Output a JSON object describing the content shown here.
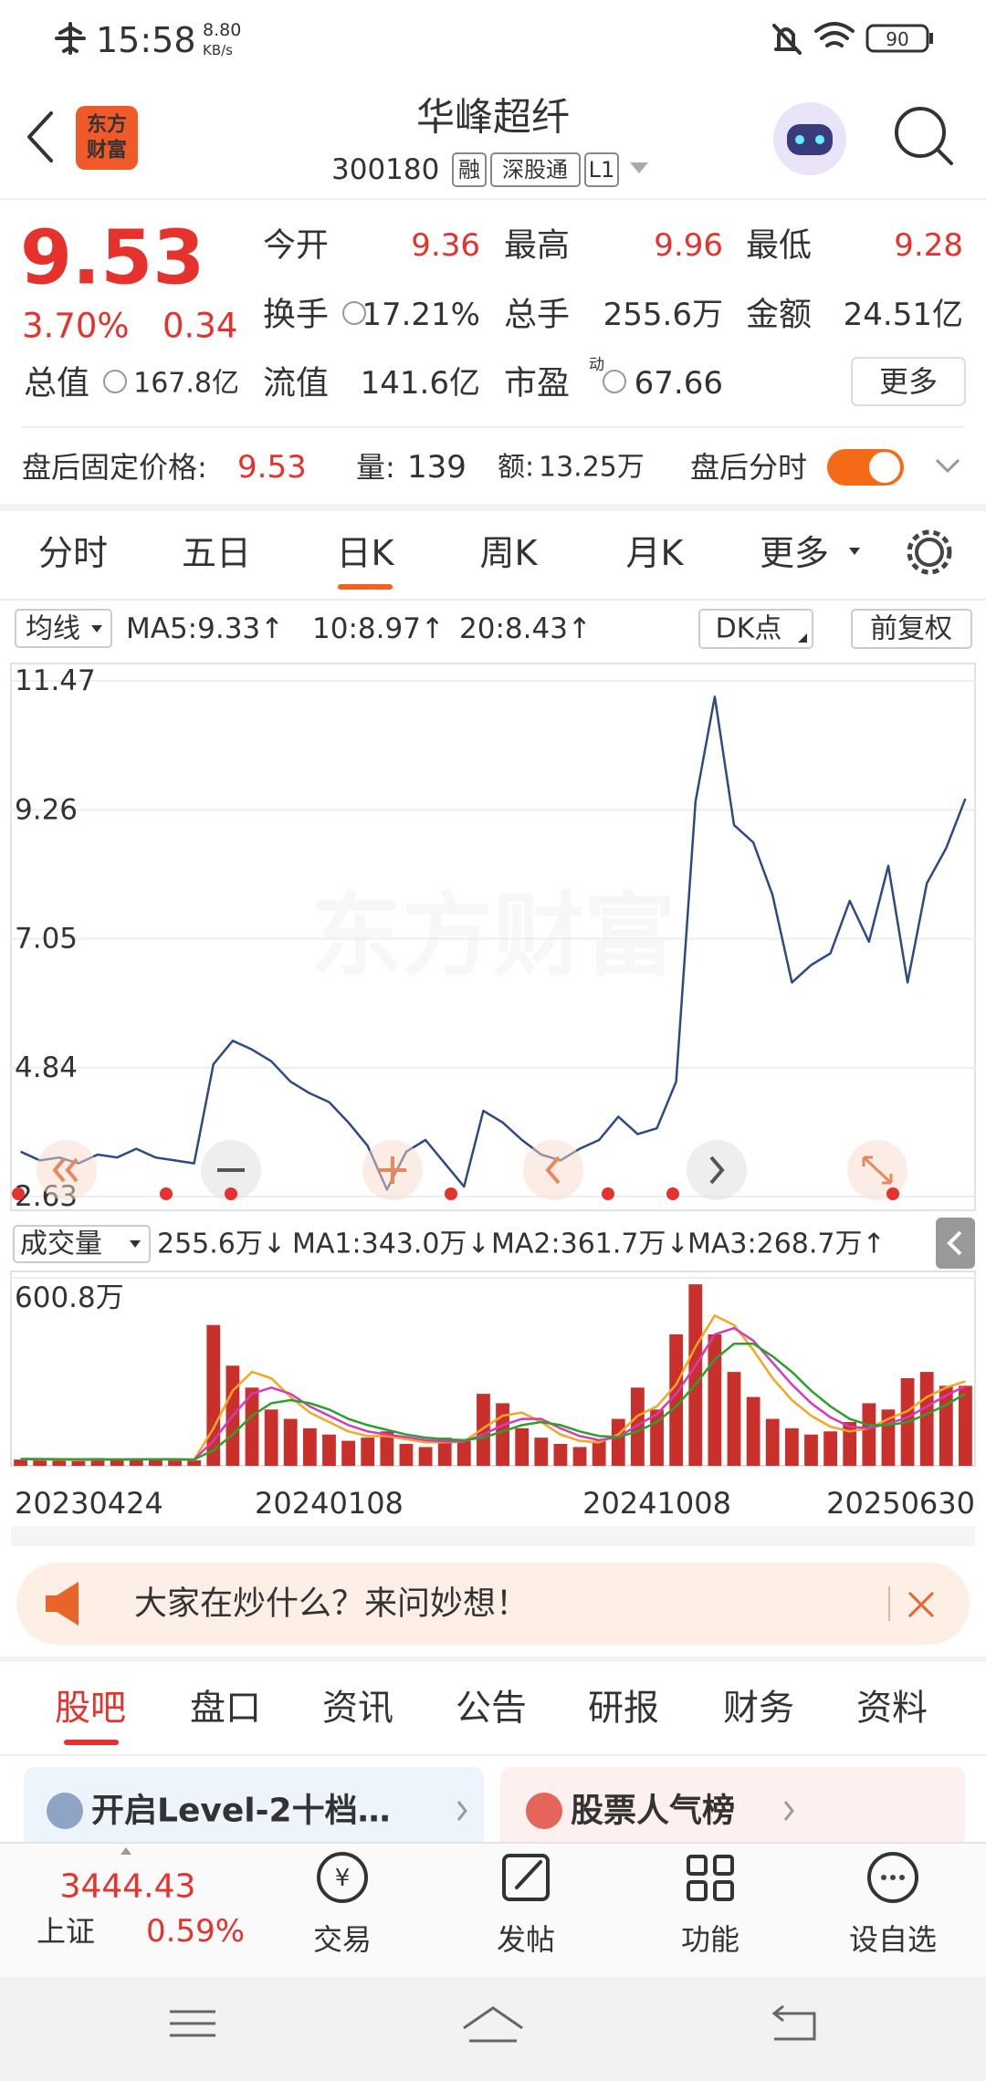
{
  "status_bar": {
    "time": "15:58",
    "speed": "8.80",
    "speed_unit": "KB/s",
    "battery": "90"
  },
  "header": {
    "logo": [
      "东方",
      "财富"
    ],
    "title": "华峰超纤",
    "code": "300180",
    "badges": [
      "融",
      "深股通",
      "L1"
    ]
  },
  "quote": {
    "price": "9.53",
    "change_pct": "3.70%",
    "change": "0.34",
    "fields": [
      {
        "label": "今开",
        "value": "9.36"
      },
      {
        "label": "最高",
        "value": "9.96"
      },
      {
        "label": "最低",
        "value": "9.28"
      },
      {
        "label": "换手",
        "value": "17.21%"
      },
      {
        "label": "总手",
        "value": "255.6万"
      },
      {
        "label": "金额",
        "value": "24.51亿"
      },
      {
        "label": "总值",
        "value": "167.8亿"
      },
      {
        "label": "流值",
        "value": "141.6亿"
      },
      {
        "label": "市盈",
        "value": "67.66"
      }
    ],
    "pe_note": "动",
    "more": "更多"
  },
  "after_hours": {
    "label": "盘后固定价格:",
    "price": "9.53",
    "volume_label": "量:",
    "volume": "139",
    "amount_label": "额:",
    "amount": "13.25万",
    "toggle_label": "盘后分时"
  },
  "chart_tabs": [
    "分时",
    "五日",
    "日K",
    "周K",
    "月K",
    "更多"
  ],
  "indicator_bar": {
    "selector": "均线",
    "items": [
      {
        "text": "MA5:9.33↑",
        "color": "#222222"
      },
      {
        "text": "10:8.97↑",
        "color": "#f5a623"
      },
      {
        "text": "20:8.43↑",
        "color": "#d63ab8"
      }
    ],
    "dk": "DK点",
    "adjust": "前复权"
  },
  "chart_data": [
    {
      "type": "line",
      "watermark": "东方财富",
      "color": "#2c4a86",
      "values": [
        3.4,
        3.25,
        3.3,
        3.2,
        3.35,
        3.3,
        3.45,
        3.3,
        3.25,
        3.2,
        4.9,
        5.3,
        5.15,
        4.95,
        4.6,
        4.4,
        4.25,
        3.9,
        3.5,
        2.75,
        3.4,
        3.6,
        3.2,
        2.8,
        4.1,
        3.9,
        3.6,
        3.35,
        3.25,
        3.45,
        3.6,
        4.0,
        3.7,
        3.8,
        4.6,
        9.4,
        11.2,
        9.0,
        8.7,
        7.8,
        6.3,
        6.6,
        6.8,
        7.7,
        7.0,
        8.3,
        6.3,
        8.0,
        8.6,
        9.45
      ],
      "ylim": [
        2.63,
        11.47
      ],
      "yticks": [
        11.47,
        9.26,
        7.05,
        4.84,
        2.63
      ],
      "grid": true
    },
    {
      "type": "bar",
      "selector": "成交量",
      "current": "255.6万↓",
      "color": "#c9302c",
      "values": [
        20,
        18,
        22,
        15,
        25,
        20,
        18,
        22,
        20,
        18,
        450,
        320,
        250,
        180,
        150,
        120,
        100,
        80,
        90,
        110,
        70,
        60,
        90,
        80,
        230,
        200,
        120,
        90,
        70,
        60,
        80,
        150,
        250,
        180,
        420,
        580,
        420,
        300,
        220,
        150,
        120,
        100,
        110,
        140,
        200,
        180,
        280,
        300,
        255.6,
        255.6
      ],
      "series": [
        {
          "name": "MA1:343.0万↓",
          "color": "#f5a623",
          "values": [
            21,
            20,
            20,
            18,
            20,
            21,
            21,
            21,
            20,
            19,
            120,
            240,
            300,
            280,
            220,
            170,
            140,
            110,
            95,
            95,
            85,
            75,
            75,
            78,
            120,
            160,
            170,
            140,
            100,
            80,
            75,
            100,
            160,
            190,
            260,
            380,
            480,
            450,
            370,
            280,
            210,
            160,
            125,
            110,
            120,
            150,
            175,
            220,
            250,
            270
          ]
        },
        {
          "name": "MA2:361.7万↓",
          "color": "#d63ab8",
          "values": [
            22,
            21,
            21,
            20,
            20,
            20,
            21,
            21,
            20,
            20,
            80,
            160,
            230,
            250,
            230,
            190,
            160,
            130,
            110,
            100,
            92,
            82,
            78,
            78,
            100,
            130,
            150,
            150,
            120,
            95,
            82,
            92,
            130,
            165,
            230,
            320,
            420,
            440,
            400,
            330,
            260,
            200,
            155,
            125,
            120,
            135,
            155,
            190,
            225,
            255
          ]
        },
        {
          "name": "MA3:268.7万↑",
          "color": "#2ca02c",
          "values": [
            22,
            22,
            21,
            21,
            21,
            20,
            20,
            21,
            21,
            20,
            50,
            100,
            160,
            200,
            210,
            200,
            180,
            150,
            130,
            115,
            100,
            90,
            85,
            82,
            90,
            110,
            130,
            140,
            130,
            110,
            95,
            92,
            110,
            140,
            190,
            260,
            340,
            390,
            390,
            350,
            300,
            240,
            190,
            150,
            130,
            130,
            140,
            165,
            195,
            230
          ]
        }
      ],
      "categories": [
        "20230424",
        null,
        null,
        null,
        null,
        null,
        null,
        null,
        null,
        null,
        null,
        null,
        null,
        null,
        null,
        null,
        "20240108",
        null,
        null,
        null,
        null,
        null,
        null,
        null,
        null,
        null,
        null,
        null,
        null,
        null,
        null,
        null,
        null,
        "20241008",
        null,
        null,
        null,
        null,
        null,
        null,
        null,
        null,
        null,
        null,
        null,
        null,
        null,
        null,
        null,
        "20250630"
      ],
      "ylim": [
        0,
        600.8
      ],
      "yticks": [
        {
          "value": 600.8,
          "label": "600.8万"
        }
      ]
    }
  ],
  "banner": {
    "text": "大家在炒什么？来问妙想！"
  },
  "info_tabs": [
    "股吧",
    "盘口",
    "资讯",
    "公告",
    "研报",
    "财务",
    "资料"
  ],
  "cards": [
    "开启Level-2十档…",
    "股票人气榜"
  ],
  "bottom_nav": {
    "index_value": "3444.43",
    "index_name": "上证",
    "index_change": "0.59%",
    "items": [
      "交易",
      "发帖",
      "功能",
      "设自选"
    ]
  }
}
